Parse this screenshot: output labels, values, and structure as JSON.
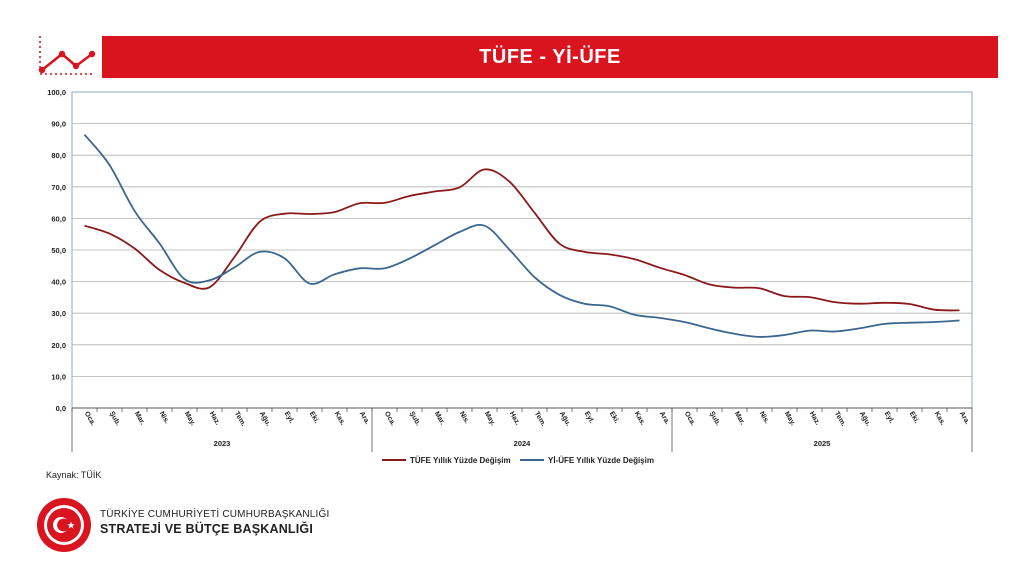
{
  "header": {
    "title": "TÜFE - Yİ-ÜFE"
  },
  "source": "Kaynak: TÜİK",
  "footer": {
    "org_line1": "TÜRKİYE CUMHURİYETİ CUMHURBAŞKANLIĞI",
    "org_line2": "STRATEJİ VE BÜTÇE BAŞKANLIĞI"
  },
  "colors": {
    "brand_red": "#d9141f",
    "tufe": "#8b1a1a",
    "yiufe": "#3a6690",
    "grid": "#b0b0b0"
  },
  "icons": [
    "line-chart-icon",
    "emblem-icon"
  ],
  "chart_data": {
    "type": "line",
    "title": "",
    "xlabel": "",
    "ylabel": "",
    "ylim": [
      0,
      100
    ],
    "y_ticks": [
      "0,0",
      "10,0",
      "20,0",
      "30,0",
      "40,0",
      "50,0",
      "60,0",
      "70,0",
      "80,0",
      "90,0",
      "100,0"
    ],
    "grid": true,
    "legend": "bottom",
    "categories": [
      "Oca.",
      "Şub.",
      "Mar.",
      "Nis.",
      "May.",
      "Haz.",
      "Tem.",
      "Ağu.",
      "Eyl.",
      "Eki.",
      "Kas.",
      "Ara.",
      "Oca.",
      "Şub.",
      "Mar.",
      "Nis.",
      "May.",
      "Haz.",
      "Tem.",
      "Ağu.",
      "Eyl.",
      "Eki.",
      "Kas.",
      "Ara.",
      "Oca.",
      "Şub.",
      "Mar.",
      "Nis.",
      "May.",
      "Haz.",
      "Tem.",
      "Ağu.",
      "Eyl.",
      "Eki.",
      "Kas.",
      "Ara."
    ],
    "years": [
      "2023",
      "2024",
      "2025"
    ],
    "series": [
      {
        "name": "TÜFE Yıllık Yüzde Değişim",
        "values": [
          57.7,
          55.2,
          50.5,
          43.7,
          39.6,
          38.2,
          47.8,
          58.9,
          61.5,
          61.4,
          62.0,
          64.8,
          64.9,
          67.1,
          68.5,
          69.8,
          75.5,
          71.6,
          61.8,
          52.0,
          49.4,
          48.6,
          47.1,
          44.4,
          42.1,
          39.1,
          38.1,
          37.9,
          35.4,
          35.1,
          33.5,
          33.0,
          33.3,
          32.9,
          31.1,
          30.9
        ]
      },
      {
        "name": "Yİ-ÜFE Yıllık Yüzde Değişim",
        "values": [
          86.5,
          76.9,
          62.4,
          52.1,
          40.8,
          40.4,
          44.5,
          49.4,
          47.4,
          39.4,
          42.3,
          44.2,
          44.2,
          47.3,
          51.5,
          55.7,
          57.7,
          50.1,
          41.4,
          35.8,
          33.0,
          32.2,
          29.5,
          28.5,
          27.2,
          25.2,
          23.5,
          22.5,
          23.1,
          24.5,
          24.2,
          25.2,
          26.6,
          27.0,
          27.2,
          27.7
        ]
      }
    ]
  }
}
